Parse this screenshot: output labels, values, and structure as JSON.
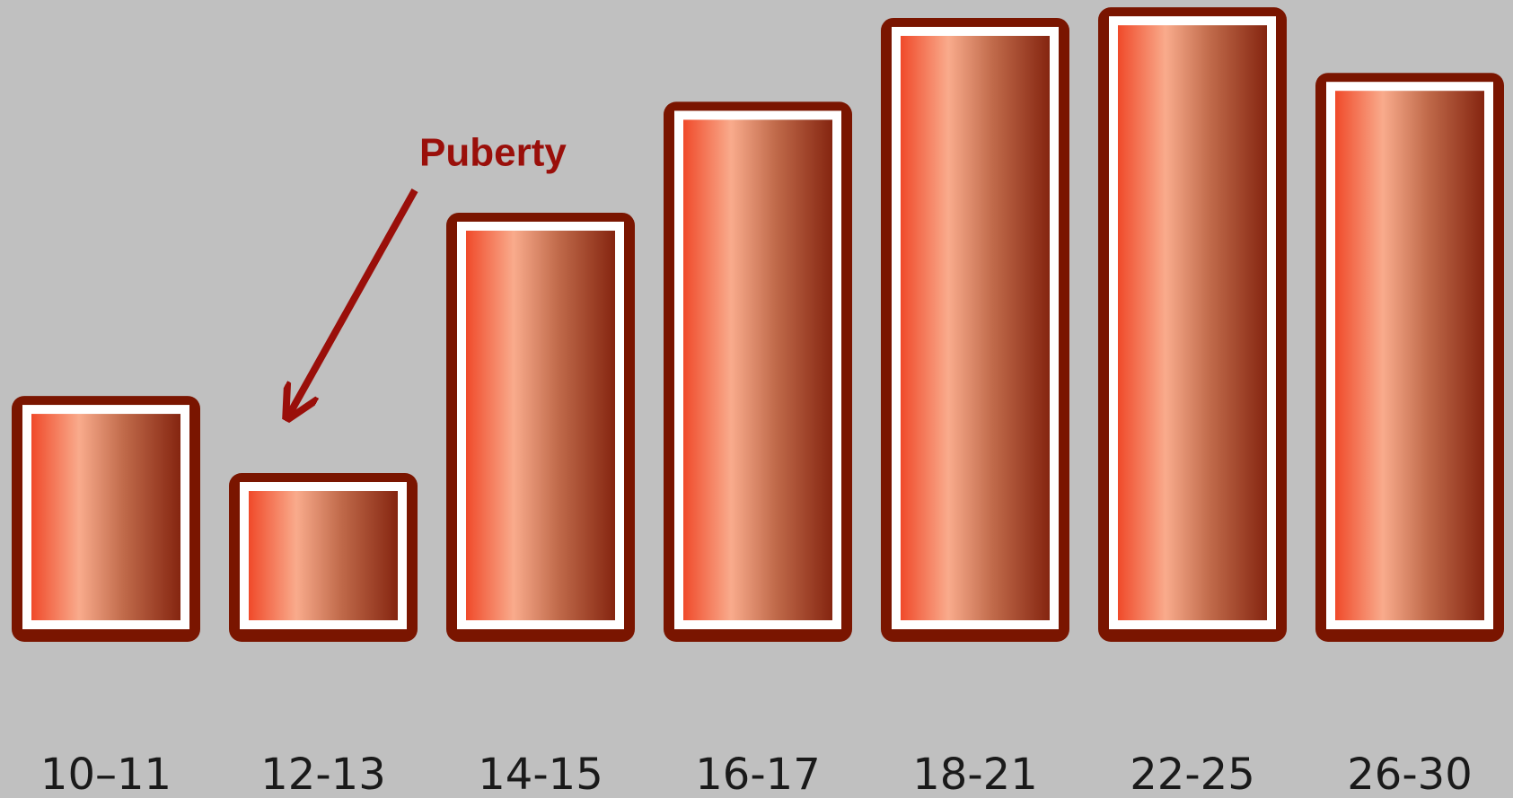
{
  "chart_data": {
    "type": "bar",
    "categories": [
      "10–11",
      "12-13",
      "14-15",
      "16-17",
      "18-21",
      "22-25",
      "26-30"
    ],
    "values": [
      255,
      175,
      445,
      560,
      647,
      658,
      590
    ],
    "ylim": [
      0,
      660
    ],
    "color": "#7a1500",
    "annotation": "Puberty"
  }
}
